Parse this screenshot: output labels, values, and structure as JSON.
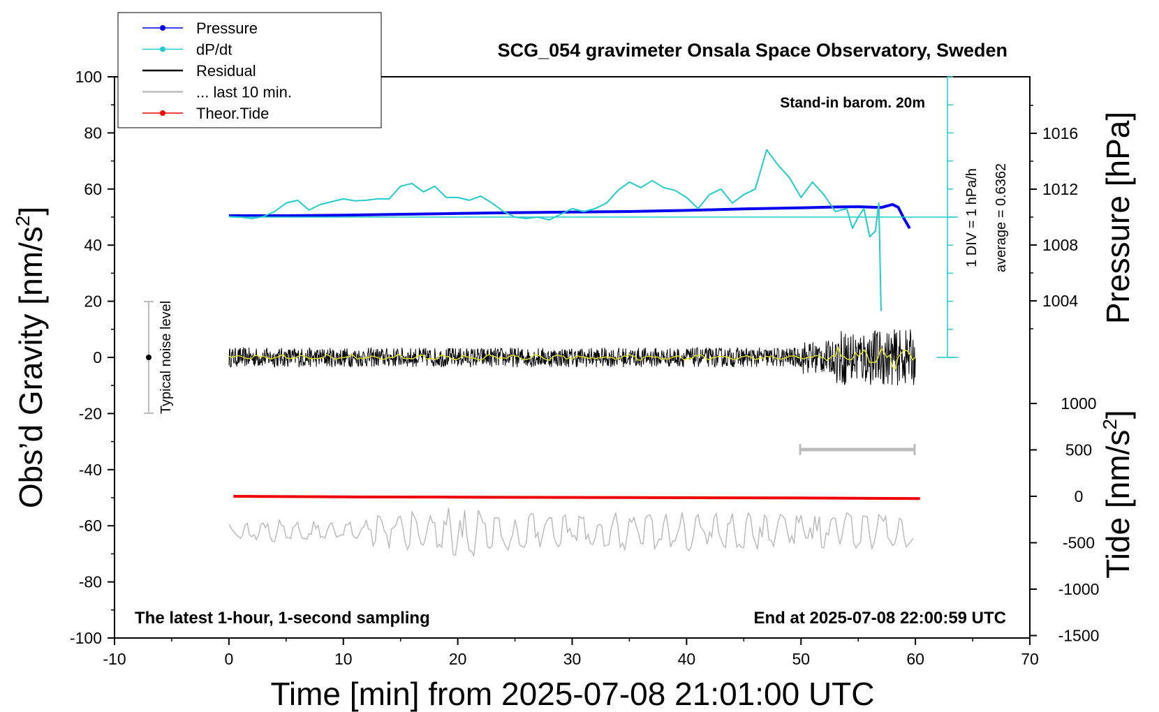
{
  "chart_data": {
    "type": "line",
    "title": "SCG_054 gravimeter Onsala Space Observatory, Sweden",
    "subtitle": "Stand-in barom. 20m",
    "xlabel": "Time [min] from 2025-07-08 21:01:00 UTC",
    "ylabel": "Obs’d Gravity [nm/s",
    "ylabel_sup": "2",
    "ylabel_end": "]",
    "y2label": "Pressure [hPa]",
    "y3label": "Tide [nm/s",
    "y3label_sup": "2",
    "y3label_end": "]",
    "xlim": [
      -10,
      70
    ],
    "ylim": [
      -100,
      100
    ],
    "x_ticks": [
      "-10",
      "0",
      "10",
      "20",
      "30",
      "40",
      "50",
      "60",
      "70"
    ],
    "y_ticks": [
      "100",
      "80",
      "60",
      "40",
      "20",
      "0",
      "-20",
      "-40",
      "-60",
      "-80",
      "-100"
    ],
    "pressure_ticks": [
      "1016",
      "1012",
      "1008",
      "1004"
    ],
    "tide_ticks": [
      "1000",
      "500",
      "0",
      "-500",
      "-1000",
      "-1500"
    ],
    "annotations": {
      "bottom_left": "The latest 1-hour, 1-second sampling",
      "bottom_right": "End at 2025-07-08 22:00:59 UTC",
      "noise": "Typical noise level",
      "dpdt_scale": "1 DIV = 1 hPa/h",
      "dpdt_average": "average = 0.6362"
    },
    "grid": false,
    "legend_position": "top-left",
    "legend": [
      {
        "label": "Pressure",
        "color": "#0000ee",
        "marker": true
      },
      {
        "label": "dP/dt",
        "color": "#22cccc",
        "marker": true
      },
      {
        "label": "Residual",
        "color": "#000000",
        "marker": false
      },
      {
        "label": "... last 10 min.",
        "color": "#bbbbbb",
        "marker": false
      },
      {
        "label": "Theor.Tide",
        "color": "#ee0000",
        "marker": true
      }
    ],
    "series": [
      {
        "name": "Pressure",
        "color": "#0000ee",
        "points": [
          [
            0,
            50.5
          ],
          [
            5,
            50.5
          ],
          [
            10,
            50.7
          ],
          [
            15,
            51.0
          ],
          [
            20,
            51.3
          ],
          [
            25,
            51.6
          ],
          [
            30,
            51.8
          ],
          [
            35,
            52.0
          ],
          [
            40,
            52.4
          ],
          [
            45,
            52.9
          ],
          [
            50,
            53.3
          ],
          [
            53,
            53.6
          ],
          [
            55,
            53.7
          ],
          [
            57,
            53.4
          ],
          [
            58,
            54.5
          ],
          [
            58.5,
            53.5
          ],
          [
            59,
            49.5
          ],
          [
            59.5,
            46.0
          ]
        ]
      },
      {
        "name": "dP/dt",
        "color": "#22cccc",
        "points": [
          [
            0,
            50.2
          ],
          [
            1,
            50.0
          ],
          [
            2,
            49.5
          ],
          [
            3,
            50.2
          ],
          [
            4,
            52
          ],
          [
            5,
            55
          ],
          [
            6,
            56
          ],
          [
            7,
            52.5
          ],
          [
            8,
            54.5
          ],
          [
            9,
            55.5
          ],
          [
            10,
            56.5
          ],
          [
            11,
            55.8
          ],
          [
            12,
            56
          ],
          [
            13,
            56.5
          ],
          [
            14,
            56.5
          ],
          [
            15,
            61
          ],
          [
            16,
            62
          ],
          [
            17,
            59
          ],
          [
            18,
            61
          ],
          [
            19,
            57
          ],
          [
            20,
            57
          ],
          [
            21,
            56
          ],
          [
            22,
            57.5
          ],
          [
            23,
            55
          ],
          [
            24,
            52
          ],
          [
            25,
            50
          ],
          [
            26,
            49.5
          ],
          [
            27,
            50
          ],
          [
            28,
            49
          ],
          [
            29,
            51
          ],
          [
            30,
            53
          ],
          [
            31,
            52
          ],
          [
            32,
            53
          ],
          [
            33,
            55
          ],
          [
            34,
            59.5
          ],
          [
            35,
            62.5
          ],
          [
            36,
            60.5
          ],
          [
            37,
            63
          ],
          [
            38,
            60.5
          ],
          [
            39,
            59.5
          ],
          [
            40,
            57
          ],
          [
            41,
            53
          ],
          [
            42,
            58
          ],
          [
            43,
            60
          ],
          [
            44,
            55
          ],
          [
            45,
            58
          ],
          [
            46,
            60
          ],
          [
            47,
            74
          ],
          [
            48,
            68.5
          ],
          [
            49,
            64
          ],
          [
            50,
            57
          ],
          [
            51,
            62.5
          ],
          [
            52,
            58
          ],
          [
            53,
            52
          ],
          [
            54,
            53
          ],
          [
            54.5,
            46
          ],
          [
            55,
            50
          ],
          [
            55.5,
            53
          ],
          [
            56,
            43
          ],
          [
            56.5,
            45
          ],
          [
            56.8,
            55
          ],
          [
            57,
            16.5
          ]
        ]
      },
      {
        "name": "Residual",
        "color": "#000000",
        "baseline": 0
      },
      {
        "name": "Theor.Tide",
        "color": "#ee0000",
        "points": [
          [
            0.4,
            -49.5
          ],
          [
            10,
            -49.7
          ],
          [
            20,
            -49.8
          ],
          [
            30,
            -49.9
          ],
          [
            40,
            -50.0
          ],
          [
            50,
            -50.1
          ],
          [
            60.4,
            -50.3
          ]
        ]
      },
      {
        "name": "... last 10 min.",
        "color": "#bbbbbb",
        "baseline": -62
      }
    ]
  }
}
